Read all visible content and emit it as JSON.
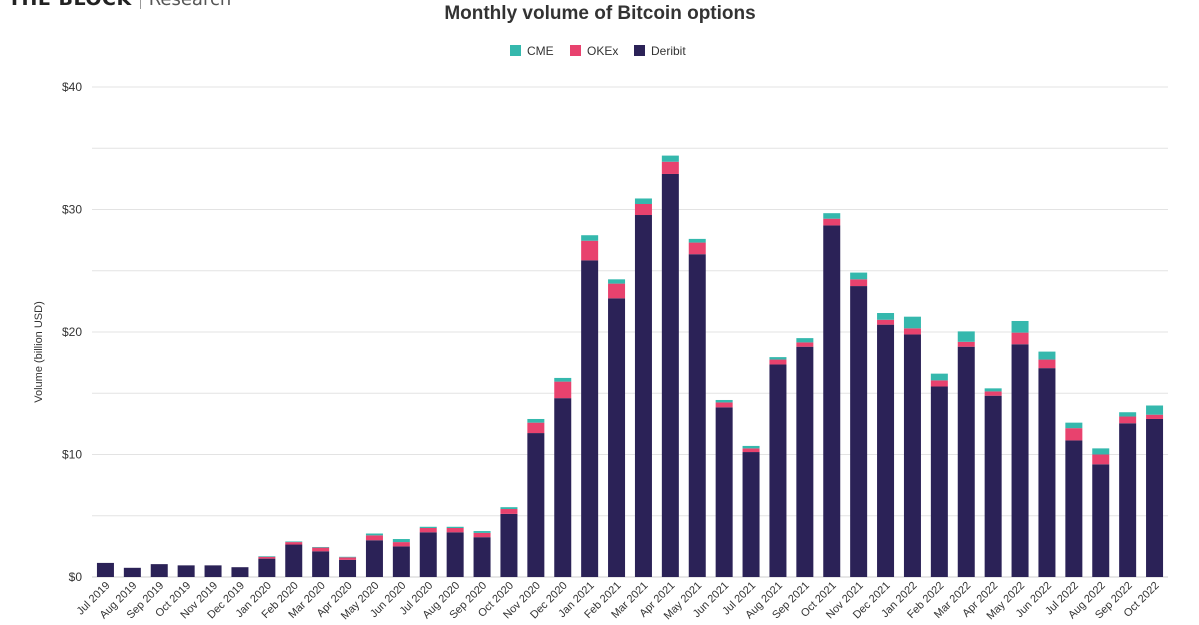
{
  "brand": {
    "name": "THE BLOCK",
    "sub": "Research"
  },
  "chart_data": {
    "type": "bar",
    "stacked": true,
    "title": "Monthly volume of Bitcoin options",
    "xlabel": "",
    "ylabel": "Volume (billion USD)",
    "ylim": [
      0,
      40
    ],
    "yticks": [
      0,
      10,
      20,
      30,
      40
    ],
    "ytick_labels": [
      "$0",
      "$10",
      "$20",
      "$30",
      "$40"
    ],
    "legend_position": "top-center",
    "grid": true,
    "categories": [
      "Jul 2019",
      "Aug 2019",
      "Sep 2019",
      "Oct 2019",
      "Nov 2019",
      "Dec 2019",
      "Jan 2020",
      "Feb 2020",
      "Mar 2020",
      "Apr 2020",
      "May 2020",
      "Jun 2020",
      "Jul 2020",
      "Aug 2020",
      "Sep 2020",
      "Oct 2020",
      "Nov 2020",
      "Dec 2020",
      "Jan 2021",
      "Feb 2021",
      "Mar 2021",
      "Apr 2021",
      "May 2021",
      "Jun 2021",
      "Jul 2021",
      "Aug 2021",
      "Sep 2021",
      "Oct 2021",
      "Nov 2021",
      "Dec 2021",
      "Jan 2022",
      "Feb 2022",
      "Mar 2022",
      "Apr 2022",
      "May 2022",
      "Jun 2022",
      "Jul 2022",
      "Aug 2022",
      "Sep 2022",
      "Oct 2022"
    ],
    "series": [
      {
        "name": "Deribit",
        "color": "#2b2257",
        "values": [
          1.15,
          0.75,
          1.05,
          0.95,
          0.95,
          0.8,
          1.5,
          2.65,
          2.1,
          1.4,
          3.0,
          2.5,
          3.65,
          3.65,
          3.25,
          5.15,
          11.75,
          14.6,
          25.85,
          22.75,
          29.55,
          32.9,
          26.35,
          13.85,
          10.2,
          17.35,
          18.8,
          28.7,
          23.75,
          20.6,
          19.8,
          15.55,
          18.8,
          14.8,
          19.0,
          17.05,
          11.15,
          9.2,
          12.55,
          12.9
        ]
      },
      {
        "name": "OKEx",
        "color": "#e8426e",
        "values": [
          0,
          0,
          0,
          0,
          0,
          0,
          0.15,
          0.2,
          0.3,
          0.2,
          0.4,
          0.35,
          0.35,
          0.35,
          0.35,
          0.4,
          0.85,
          1.35,
          1.6,
          1.2,
          0.9,
          1.0,
          0.95,
          0.4,
          0.3,
          0.4,
          0.35,
          0.55,
          0.55,
          0.4,
          0.5,
          0.5,
          0.4,
          0.35,
          0.95,
          0.7,
          1.0,
          0.8,
          0.55,
          0.35
        ]
      },
      {
        "name": "CME",
        "color": "#35b8ad",
        "values": [
          0,
          0,
          0,
          0,
          0,
          0,
          0.05,
          0.05,
          0.05,
          0.05,
          0.15,
          0.25,
          0.1,
          0.1,
          0.15,
          0.15,
          0.3,
          0.3,
          0.45,
          0.35,
          0.45,
          0.5,
          0.3,
          0.2,
          0.2,
          0.2,
          0.35,
          0.45,
          0.55,
          0.55,
          0.95,
          0.55,
          0.85,
          0.25,
          0.95,
          0.65,
          0.45,
          0.5,
          0.35,
          0.75
        ]
      }
    ]
  }
}
